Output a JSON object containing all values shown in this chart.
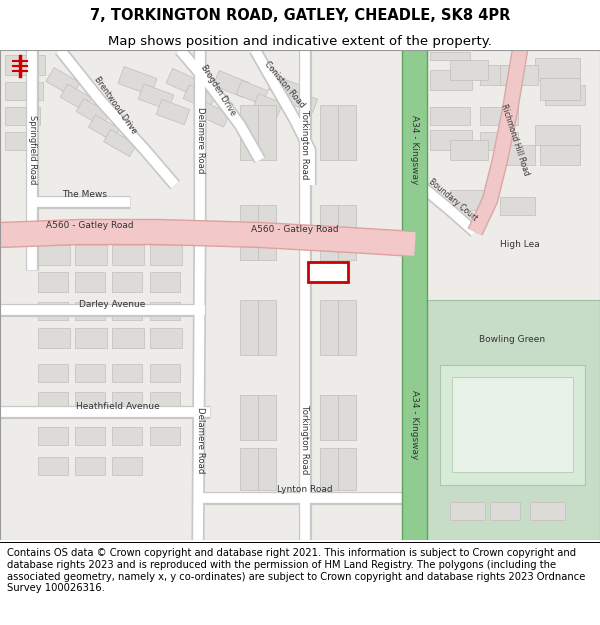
{
  "title_line1": "7, TORKINGTON ROAD, GATLEY, CHEADLE, SK8 4PR",
  "title_line2": "Map shows position and indicative extent of the property.",
  "footer_text": "Contains OS data © Crown copyright and database right 2021. This information is subject to Crown copyright and database rights 2023 and is reproduced with the permission of HM Land Registry. The polygons (including the associated geometry, namely x, y co-ordinates) are subject to Crown copyright and database rights 2023 Ordnance Survey 100026316.",
  "map_bg": "#eeece8",
  "road_major_color": "#f2c8c8",
  "road_major_outline": "#e0a0a0",
  "road_minor_color": "#ffffff",
  "road_outline_color": "#c8c8c8",
  "green_road_color": "#90cc90",
  "green_road_outline": "#60a060",
  "building_color": "#dddbd8",
  "building_outline": "#c0bebb",
  "park_color": "#c8ddc8",
  "park_outline": "#a0c0a0",
  "plot_fill": "#ffffff",
  "plot_outline": "#cc0000",
  "title_fontsize": 10.5,
  "subtitle_fontsize": 9.5,
  "footer_fontsize": 7.2,
  "label_fontsize": 6.5
}
